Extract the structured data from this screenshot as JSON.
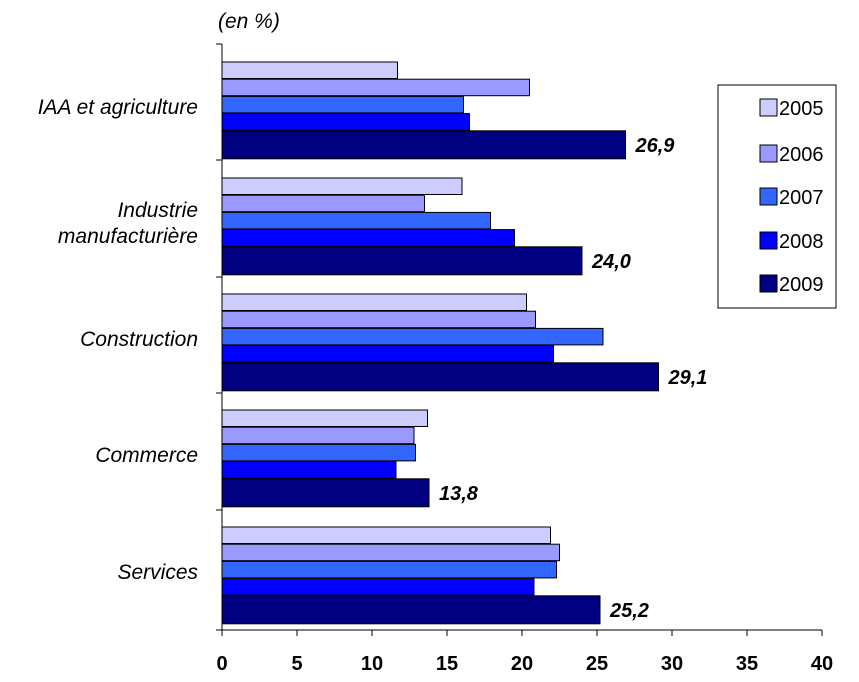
{
  "chart_data": {
    "type": "bar",
    "orientation": "horizontal",
    "unit_label": "(en %)",
    "categories": [
      "IAA et agriculture",
      "Industrie manufacturière",
      "Construction",
      "Commerce",
      "Services"
    ],
    "category_lines": [
      [
        "IAA et agriculture"
      ],
      [
        "Industrie",
        "manufacturière"
      ],
      [
        "Construction"
      ],
      [
        "Commerce"
      ],
      [
        "Services"
      ]
    ],
    "series": [
      {
        "name": "2005",
        "color": "#ccccff",
        "values": [
          11.7,
          16.0,
          20.3,
          13.7,
          21.9
        ]
      },
      {
        "name": "2006",
        "color": "#9999ff",
        "values": [
          20.5,
          13.5,
          20.9,
          12.8,
          22.5
        ]
      },
      {
        "name": "2007",
        "color": "#3366ff",
        "values": [
          16.1,
          17.9,
          25.4,
          12.9,
          22.3
        ]
      },
      {
        "name": "2008",
        "color": "#0000ff",
        "values": [
          16.5,
          19.5,
          22.1,
          11.6,
          20.8
        ]
      },
      {
        "name": "2009",
        "color": "#000080",
        "values": [
          26.9,
          24.0,
          29.1,
          13.8,
          25.2
        ]
      }
    ],
    "data_labels": [
      "26,9",
      "24,0",
      "29,1",
      "13,8",
      "25,2"
    ],
    "xlim": [
      0,
      40
    ],
    "xticks": [
      "0",
      "5",
      "10",
      "15",
      "20",
      "25",
      "30",
      "35",
      "40"
    ],
    "grid": false,
    "legend": "right"
  }
}
